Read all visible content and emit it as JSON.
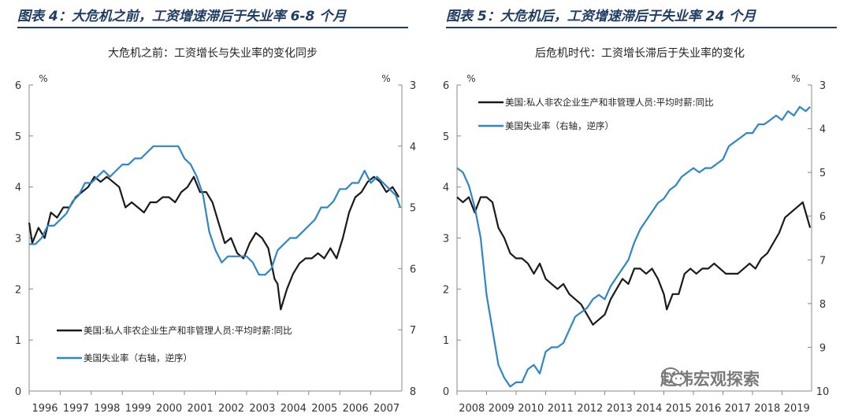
{
  "figures": [
    {
      "label": "图表 4：大危机之前，工资增速滞后于失业率 6-8 个月"
    },
    {
      "label": "图表 5：大危机后，工资增速滞后于失业率 24 个月"
    }
  ],
  "watermark": {
    "text": "赵伟宏观探索",
    "icon": "wechat-logo-icon"
  },
  "colors": {
    "wage": "#1a1a1a",
    "unemp": "#2e86c8",
    "axis": "#888888",
    "title_bar": "#1f3c64"
  },
  "chart_data": [
    {
      "type": "line",
      "title": "大危机之前：工资增长与失业率的变化同步",
      "left_unit": "%",
      "right_unit": "%",
      "xlim": [
        1996,
        2008
      ],
      "x_ticks": [
        1996,
        1997,
        1998,
        1999,
        2000,
        2001,
        2002,
        2003,
        2004,
        2005,
        2006,
        2007
      ],
      "ylim_left": [
        0,
        6
      ],
      "left_ticks": [
        0,
        1,
        2,
        3,
        4,
        5,
        6
      ],
      "ylim_right": [
        3,
        8
      ],
      "right_inverted": true,
      "right_ticks": [
        3,
        4,
        5,
        6,
        7,
        8
      ],
      "legend_position": "bottom-left",
      "series": [
        {
          "name": "美国:私人非农企业生产和非管理人员:平均时薪:同比",
          "axis": "left",
          "color": "#1a1a1a",
          "points": [
            [
              1996.0,
              3.3
            ],
            [
              1996.1,
              2.9
            ],
            [
              1996.3,
              3.2
            ],
            [
              1996.5,
              3.0
            ],
            [
              1996.7,
              3.5
            ],
            [
              1996.9,
              3.4
            ],
            [
              1997.1,
              3.6
            ],
            [
              1997.3,
              3.6
            ],
            [
              1997.5,
              3.8
            ],
            [
              1997.7,
              3.9
            ],
            [
              1997.9,
              4.0
            ],
            [
              1998.1,
              4.2
            ],
            [
              1998.3,
              4.1
            ],
            [
              1998.5,
              4.2
            ],
            [
              1998.7,
              4.1
            ],
            [
              1998.9,
              4.0
            ],
            [
              1999.1,
              3.6
            ],
            [
              1999.3,
              3.7
            ],
            [
              1999.5,
              3.6
            ],
            [
              1999.7,
              3.5
            ],
            [
              1999.9,
              3.7
            ],
            [
              2000.1,
              3.7
            ],
            [
              2000.3,
              3.8
            ],
            [
              2000.5,
              3.8
            ],
            [
              2000.7,
              3.7
            ],
            [
              2000.9,
              3.9
            ],
            [
              2001.1,
              4.0
            ],
            [
              2001.3,
              4.2
            ],
            [
              2001.5,
              3.9
            ],
            [
              2001.7,
              3.9
            ],
            [
              2001.9,
              3.7
            ],
            [
              2002.1,
              3.3
            ],
            [
              2002.3,
              2.9
            ],
            [
              2002.5,
              3.0
            ],
            [
              2002.7,
              2.7
            ],
            [
              2002.9,
              2.6
            ],
            [
              2003.1,
              2.9
            ],
            [
              2003.3,
              3.1
            ],
            [
              2003.5,
              3.0
            ],
            [
              2003.7,
              2.8
            ],
            [
              2003.9,
              2.2
            ],
            [
              2004.0,
              2.1
            ],
            [
              2004.1,
              1.6
            ],
            [
              2004.3,
              2.0
            ],
            [
              2004.5,
              2.3
            ],
            [
              2004.7,
              2.5
            ],
            [
              2004.9,
              2.6
            ],
            [
              2005.1,
              2.6
            ],
            [
              2005.3,
              2.7
            ],
            [
              2005.5,
              2.6
            ],
            [
              2005.7,
              2.8
            ],
            [
              2005.9,
              2.6
            ],
            [
              2006.1,
              3.0
            ],
            [
              2006.3,
              3.5
            ],
            [
              2006.5,
              3.8
            ],
            [
              2006.7,
              3.9
            ],
            [
              2006.9,
              4.1
            ],
            [
              2007.1,
              4.2
            ],
            [
              2007.3,
              4.1
            ],
            [
              2007.5,
              3.9
            ],
            [
              2007.7,
              4.0
            ],
            [
              2007.9,
              3.8
            ]
          ]
        },
        {
          "name": "美国失业率（右轴，逆序）",
          "axis": "right",
          "color": "#2e86c8",
          "points": [
            [
              1996.0,
              5.6
            ],
            [
              1996.2,
              5.6
            ],
            [
              1996.4,
              5.5
            ],
            [
              1996.6,
              5.3
            ],
            [
              1996.8,
              5.3
            ],
            [
              1997.0,
              5.2
            ],
            [
              1997.2,
              5.1
            ],
            [
              1997.4,
              4.9
            ],
            [
              1997.6,
              4.8
            ],
            [
              1997.8,
              4.6
            ],
            [
              1998.0,
              4.6
            ],
            [
              1998.2,
              4.5
            ],
            [
              1998.4,
              4.4
            ],
            [
              1998.6,
              4.5
            ],
            [
              1998.8,
              4.4
            ],
            [
              1999.0,
              4.3
            ],
            [
              1999.2,
              4.3
            ],
            [
              1999.4,
              4.2
            ],
            [
              1999.6,
              4.2
            ],
            [
              1999.8,
              4.1
            ],
            [
              2000.0,
              4.0
            ],
            [
              2000.2,
              4.0
            ],
            [
              2000.4,
              4.0
            ],
            [
              2000.6,
              4.0
            ],
            [
              2000.8,
              4.0
            ],
            [
              2001.0,
              4.2
            ],
            [
              2001.2,
              4.3
            ],
            [
              2001.4,
              4.5
            ],
            [
              2001.6,
              4.8
            ],
            [
              2001.8,
              5.4
            ],
            [
              2002.0,
              5.7
            ],
            [
              2002.2,
              5.9
            ],
            [
              2002.4,
              5.8
            ],
            [
              2002.6,
              5.8
            ],
            [
              2002.8,
              5.8
            ],
            [
              2003.0,
              5.8
            ],
            [
              2003.2,
              5.9
            ],
            [
              2003.4,
              6.1
            ],
            [
              2003.6,
              6.1
            ],
            [
              2003.8,
              6.0
            ],
            [
              2004.0,
              5.7
            ],
            [
              2004.2,
              5.6
            ],
            [
              2004.4,
              5.5
            ],
            [
              2004.6,
              5.5
            ],
            [
              2004.8,
              5.4
            ],
            [
              2005.0,
              5.3
            ],
            [
              2005.2,
              5.2
            ],
            [
              2005.4,
              5.0
            ],
            [
              2005.6,
              5.0
            ],
            [
              2005.8,
              4.9
            ],
            [
              2006.0,
              4.7
            ],
            [
              2006.2,
              4.7
            ],
            [
              2006.4,
              4.6
            ],
            [
              2006.6,
              4.6
            ],
            [
              2006.8,
              4.4
            ],
            [
              2007.0,
              4.6
            ],
            [
              2007.2,
              4.5
            ],
            [
              2007.4,
              4.6
            ],
            [
              2007.6,
              4.7
            ],
            [
              2007.8,
              4.8
            ],
            [
              2007.95,
              5.0
            ]
          ]
        }
      ]
    },
    {
      "type": "line",
      "title": "后危机时代：工资增长滞后于失业率的变化",
      "left_unit": "%",
      "right_unit": "%",
      "xlim": [
        2008,
        2020
      ],
      "x_ticks": [
        2008,
        2009,
        2010,
        2011,
        2012,
        2013,
        2014,
        2015,
        2016,
        2017,
        2018,
        2019
      ],
      "ylim_left": [
        0,
        6
      ],
      "left_ticks": [
        0,
        1,
        2,
        3,
        4,
        5,
        6
      ],
      "ylim_right": [
        3,
        10
      ],
      "right_inverted": true,
      "right_ticks": [
        3,
        4,
        5,
        6,
        7,
        8,
        9,
        10
      ],
      "legend_position": "top-left",
      "series": [
        {
          "name": "美国:私人非农企业生产和非管理人员:平均时薪:同比",
          "axis": "left",
          "color": "#1a1a1a",
          "points": [
            [
              2008.0,
              3.8
            ],
            [
              2008.2,
              3.7
            ],
            [
              2008.4,
              3.8
            ],
            [
              2008.6,
              3.5
            ],
            [
              2008.8,
              3.8
            ],
            [
              2009.0,
              3.8
            ],
            [
              2009.2,
              3.7
            ],
            [
              2009.4,
              3.2
            ],
            [
              2009.6,
              3.0
            ],
            [
              2009.8,
              2.7
            ],
            [
              2010.0,
              2.6
            ],
            [
              2010.2,
              2.6
            ],
            [
              2010.4,
              2.5
            ],
            [
              2010.6,
              2.3
            ],
            [
              2010.8,
              2.5
            ],
            [
              2011.0,
              2.2
            ],
            [
              2011.2,
              2.1
            ],
            [
              2011.4,
              2.0
            ],
            [
              2011.6,
              2.1
            ],
            [
              2011.8,
              1.9
            ],
            [
              2012.0,
              1.8
            ],
            [
              2012.2,
              1.7
            ],
            [
              2012.4,
              1.5
            ],
            [
              2012.6,
              1.3
            ],
            [
              2012.8,
              1.4
            ],
            [
              2013.0,
              1.5
            ],
            [
              2013.2,
              1.8
            ],
            [
              2013.4,
              2.0
            ],
            [
              2013.6,
              2.2
            ],
            [
              2013.8,
              2.1
            ],
            [
              2014.0,
              2.4
            ],
            [
              2014.2,
              2.4
            ],
            [
              2014.4,
              2.3
            ],
            [
              2014.6,
              2.4
            ],
            [
              2014.8,
              2.2
            ],
            [
              2015.0,
              1.9
            ],
            [
              2015.1,
              1.6
            ],
            [
              2015.3,
              1.9
            ],
            [
              2015.5,
              1.9
            ],
            [
              2015.7,
              2.3
            ],
            [
              2015.9,
              2.4
            ],
            [
              2016.1,
              2.3
            ],
            [
              2016.3,
              2.4
            ],
            [
              2016.5,
              2.4
            ],
            [
              2016.7,
              2.5
            ],
            [
              2016.9,
              2.4
            ],
            [
              2017.1,
              2.3
            ],
            [
              2017.3,
              2.3
            ],
            [
              2017.5,
              2.3
            ],
            [
              2017.7,
              2.4
            ],
            [
              2017.9,
              2.5
            ],
            [
              2018.1,
              2.4
            ],
            [
              2018.3,
              2.6
            ],
            [
              2018.5,
              2.7
            ],
            [
              2018.7,
              2.9
            ],
            [
              2018.9,
              3.1
            ],
            [
              2019.1,
              3.4
            ],
            [
              2019.3,
              3.5
            ],
            [
              2019.5,
              3.6
            ],
            [
              2019.7,
              3.7
            ],
            [
              2019.85,
              3.4
            ],
            [
              2019.95,
              3.2
            ]
          ]
        },
        {
          "name": "美国失业率（右轴，逆序）",
          "axis": "right",
          "color": "#2e86c8",
          "points": [
            [
              2008.0,
              4.9
            ],
            [
              2008.2,
              5.0
            ],
            [
              2008.4,
              5.3
            ],
            [
              2008.6,
              5.8
            ],
            [
              2008.8,
              6.5
            ],
            [
              2009.0,
              7.8
            ],
            [
              2009.2,
              8.6
            ],
            [
              2009.4,
              9.4
            ],
            [
              2009.6,
              9.7
            ],
            [
              2009.8,
              9.9
            ],
            [
              2010.0,
              9.8
            ],
            [
              2010.2,
              9.8
            ],
            [
              2010.4,
              9.5
            ],
            [
              2010.6,
              9.4
            ],
            [
              2010.8,
              9.6
            ],
            [
              2011.0,
              9.1
            ],
            [
              2011.2,
              9.0
            ],
            [
              2011.4,
              9.0
            ],
            [
              2011.6,
              8.9
            ],
            [
              2011.8,
              8.6
            ],
            [
              2012.0,
              8.3
            ],
            [
              2012.2,
              8.2
            ],
            [
              2012.4,
              8.1
            ],
            [
              2012.6,
              7.9
            ],
            [
              2012.8,
              7.8
            ],
            [
              2013.0,
              7.9
            ],
            [
              2013.2,
              7.6
            ],
            [
              2013.4,
              7.4
            ],
            [
              2013.6,
              7.2
            ],
            [
              2013.8,
              7.0
            ],
            [
              2014.0,
              6.6
            ],
            [
              2014.2,
              6.3
            ],
            [
              2014.4,
              6.1
            ],
            [
              2014.6,
              5.9
            ],
            [
              2014.8,
              5.7
            ],
            [
              2015.0,
              5.6
            ],
            [
              2015.2,
              5.4
            ],
            [
              2015.4,
              5.3
            ],
            [
              2015.6,
              5.1
            ],
            [
              2015.8,
              5.0
            ],
            [
              2016.0,
              4.9
            ],
            [
              2016.2,
              5.0
            ],
            [
              2016.4,
              4.9
            ],
            [
              2016.6,
              4.9
            ],
            [
              2016.8,
              4.8
            ],
            [
              2017.0,
              4.7
            ],
            [
              2017.2,
              4.4
            ],
            [
              2017.4,
              4.3
            ],
            [
              2017.6,
              4.2
            ],
            [
              2017.8,
              4.1
            ],
            [
              2018.0,
              4.1
            ],
            [
              2018.2,
              3.9
            ],
            [
              2018.4,
              3.9
            ],
            [
              2018.6,
              3.8
            ],
            [
              2018.8,
              3.7
            ],
            [
              2019.0,
              3.8
            ],
            [
              2019.2,
              3.6
            ],
            [
              2019.4,
              3.7
            ],
            [
              2019.6,
              3.5
            ],
            [
              2019.8,
              3.6
            ],
            [
              2019.95,
              3.5
            ]
          ]
        }
      ]
    }
  ]
}
